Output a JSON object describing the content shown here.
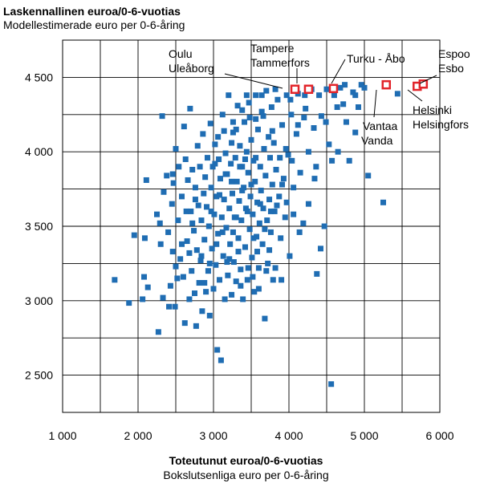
{
  "chart_data": {
    "type": "scatter",
    "title": "Laskennallinen euroa/0-6-vuotias",
    "subtitle": "Modellestimerade euro per 0-6-åring",
    "xlabel": "Toteutunut euroa/0-6-vuotias",
    "xlabel_sub": "Bokslutsenliga euro per 0-6-åring",
    "xlim": [
      1000,
      6000
    ],
    "ylim": [
      2250,
      4750
    ],
    "x_ticks": [
      "1 000",
      "2 000",
      "3 000",
      "4 000",
      "5 000",
      "6 000"
    ],
    "y_ticks": [
      "2 500",
      "3 000",
      "3 500",
      "4 000",
      "4 500"
    ],
    "x_tick_values": [
      1000,
      2000,
      3000,
      4000,
      5000,
      6000
    ],
    "y_tick_values": [
      2500,
      3000,
      3500,
      4000,
      4500
    ],
    "grid": true,
    "colors": {
      "points": "#1f6db3",
      "highlight": "#e2242a",
      "grid": "#000000"
    },
    "highlighted": [
      {
        "x": 4080,
        "y": 4420,
        "label": [
          "Oulu",
          "Uleåborg"
        ]
      },
      {
        "x": 4260,
        "y": 4420,
        "label": [
          "Tampere",
          "Tammerfors"
        ]
      },
      {
        "x": 4590,
        "y": 4425,
        "label": [
          "Turku - Åbo"
        ]
      },
      {
        "x": 5290,
        "y": 4450,
        "label": [
          "Vantaa",
          "Vanda"
        ]
      },
      {
        "x": 5700,
        "y": 4440,
        "label": [
          "Helsinki",
          "Helsingfors"
        ]
      },
      {
        "x": 5780,
        "y": 4455,
        "label": [
          "Espoo",
          "Esbo"
        ]
      }
    ],
    "series": [
      {
        "points": [
          [
            1690,
            3140
          ],
          [
            1880,
            2985
          ],
          [
            1950,
            3440
          ],
          [
            2060,
            3010
          ],
          [
            2080,
            3160
          ],
          [
            2090,
            3420
          ],
          [
            2110,
            3810
          ],
          [
            2130,
            3090
          ],
          [
            2250,
            3580
          ],
          [
            2270,
            2790
          ],
          [
            2290,
            3520
          ],
          [
            2300,
            3380
          ],
          [
            2320,
            4240
          ],
          [
            2330,
            3020
          ],
          [
            2340,
            3730
          ],
          [
            2380,
            3840
          ],
          [
            2400,
            3460
          ],
          [
            2410,
            2960
          ],
          [
            2430,
            3100
          ],
          [
            2450,
            3650
          ],
          [
            2460,
            3330
          ],
          [
            2470,
            3790
          ],
          [
            2490,
            2960
          ],
          [
            2500,
            4020
          ],
          [
            2520,
            3150
          ],
          [
            2530,
            3540
          ],
          [
            2540,
            3900
          ],
          [
            2560,
            3280
          ],
          [
            2580,
            3700
          ],
          [
            2600,
            3160
          ],
          [
            2610,
            4170
          ],
          [
            2620,
            2850
          ],
          [
            2630,
            3950
          ],
          [
            2650,
            3400
          ],
          [
            2660,
            3810
          ],
          [
            2680,
            3010
          ],
          [
            2690,
            4290
          ],
          [
            2700,
            3600
          ],
          [
            2710,
            3200
          ],
          [
            2720,
            3880
          ],
          [
            2740,
            3470
          ],
          [
            2750,
            3050
          ],
          [
            2760,
            3760
          ],
          [
            2770,
            2830
          ],
          [
            2780,
            3340
          ],
          [
            2790,
            4040
          ],
          [
            2800,
            3640
          ],
          [
            2810,
            3120
          ],
          [
            2820,
            3900
          ],
          [
            2830,
            3270
          ],
          [
            2840,
            3540
          ],
          [
            2850,
            2930
          ],
          [
            2860,
            4120
          ],
          [
            2870,
            3720
          ],
          [
            2880,
            3410
          ],
          [
            2890,
            3830
          ],
          [
            2900,
            3060
          ],
          [
            2910,
            3630
          ],
          [
            2920,
            3960
          ],
          [
            2930,
            3200
          ],
          [
            2940,
            3500
          ],
          [
            2950,
            2900
          ],
          [
            2960,
            4190
          ],
          [
            2970,
            3760
          ],
          [
            2980,
            3350
          ],
          [
            2990,
            3900
          ],
          [
            3000,
            3080
          ],
          [
            3010,
            3580
          ],
          [
            3020,
            4050
          ],
          [
            3030,
            3240
          ],
          [
            3040,
            3700
          ],
          [
            3050,
            2670
          ],
          [
            3060,
            3450
          ],
          [
            3070,
            3950
          ],
          [
            3080,
            3140
          ],
          [
            3090,
            3820
          ],
          [
            3100,
            2600
          ],
          [
            3110,
            3560
          ],
          [
            3120,
            4250
          ],
          [
            3130,
            3300
          ],
          [
            3140,
            3680
          ],
          [
            3150,
            3010
          ],
          [
            3160,
            3990
          ],
          [
            3170,
            3490
          ],
          [
            3180,
            3850
          ],
          [
            3190,
            3170
          ],
          [
            3200,
            4380
          ],
          [
            3210,
            3620
          ],
          [
            3220,
            3380
          ],
          [
            3230,
            3920
          ],
          [
            3240,
            3040
          ],
          [
            3250,
            3720
          ],
          [
            3260,
            4130
          ],
          [
            3270,
            3260
          ],
          [
            3280,
            3560
          ],
          [
            3290,
            3960
          ],
          [
            3300,
            3130
          ],
          [
            3310,
            3800
          ],
          [
            3320,
            4310
          ],
          [
            3330,
            3420
          ],
          [
            3340,
            3670
          ],
          [
            3350,
            4040
          ],
          [
            3360,
            3210
          ],
          [
            3370,
            3540
          ],
          [
            3380,
            3900
          ],
          [
            3390,
            3010
          ],
          [
            3400,
            3760
          ],
          [
            3410,
            4200
          ],
          [
            3420,
            3360
          ],
          [
            3430,
            3620
          ],
          [
            3440,
            4000
          ],
          [
            3450,
            3140
          ],
          [
            3460,
            3860
          ],
          [
            3470,
            4330
          ],
          [
            3480,
            3480
          ],
          [
            3490,
            3700
          ],
          [
            3500,
            4080
          ],
          [
            3510,
            3290
          ],
          [
            3520,
            3580
          ],
          [
            3530,
            3940
          ],
          [
            3540,
            3060
          ],
          [
            3550,
            3800
          ],
          [
            3560,
            4380
          ],
          [
            3570,
            3430
          ],
          [
            3580,
            3660
          ],
          [
            3590,
            4150
          ],
          [
            3600,
            3220
          ],
          [
            3610,
            3520
          ],
          [
            3620,
            3900
          ],
          [
            3630,
            3740
          ],
          [
            3640,
            4270
          ],
          [
            3650,
            3380
          ],
          [
            3660,
            3620
          ],
          [
            3670,
            4020
          ],
          [
            3680,
            2880
          ],
          [
            3690,
            3840
          ],
          [
            3700,
            4410
          ],
          [
            3710,
            3540
          ],
          [
            3720,
            3250
          ],
          [
            3730,
            4100
          ],
          [
            3740,
            3680
          ],
          [
            3750,
            3960
          ],
          [
            3760,
            3460
          ],
          [
            3770,
            4300
          ],
          [
            3780,
            3780
          ],
          [
            3790,
            3140
          ],
          [
            3800,
            4060
          ],
          [
            3810,
            3600
          ],
          [
            3830,
            3880
          ],
          [
            3850,
            4350
          ],
          [
            3870,
            3700
          ],
          [
            3890,
            3420
          ],
          [
            3910,
            4180
          ],
          [
            3930,
            3820
          ],
          [
            3950,
            3560
          ],
          [
            3970,
            4380
          ],
          [
            3990,
            3980
          ],
          [
            4010,
            3300
          ],
          [
            4030,
            4250
          ],
          [
            4060,
            3760
          ],
          [
            4100,
            4120
          ],
          [
            4120,
            4390
          ],
          [
            4150,
            3860
          ],
          [
            4190,
            3520
          ],
          [
            4220,
            4290
          ],
          [
            4260,
            4000
          ],
          [
            4300,
            4420
          ],
          [
            4330,
            4160
          ],
          [
            4360,
            3900
          ],
          [
            4400,
            4380
          ],
          [
            4430,
            4240
          ],
          [
            4470,
            3500
          ],
          [
            4500,
            4420
          ],
          [
            4530,
            4050
          ],
          [
            4560,
            2440
          ],
          [
            4570,
            3940
          ],
          [
            4600,
            4380
          ],
          [
            4640,
            4300
          ],
          [
            4680,
            4430
          ],
          [
            4720,
            4320
          ],
          [
            4760,
            4200
          ],
          [
            4800,
            3940
          ],
          [
            4850,
            4400
          ],
          [
            4880,
            4130
          ],
          [
            4920,
            4300
          ],
          [
            4960,
            4450
          ],
          [
            5000,
            4430
          ],
          [
            5050,
            3840
          ],
          [
            5250,
            3660
          ],
          [
            5440,
            4390
          ],
          [
            4420,
            3350
          ],
          [
            4370,
            3180
          ],
          [
            3350,
            3900
          ],
          [
            3420,
            3950
          ],
          [
            3500,
            3780
          ],
          [
            3560,
            3960
          ],
          [
            3620,
            3650
          ],
          [
            3380,
            3740
          ],
          [
            3240,
            3800
          ],
          [
            3160,
            3850
          ],
          [
            3080,
            3710
          ],
          [
            3020,
            3920
          ],
          [
            2970,
            3600
          ],
          [
            3120,
            3460
          ],
          [
            3210,
            3280
          ],
          [
            3300,
            3560
          ],
          [
            3450,
            3600
          ],
          [
            3530,
            3420
          ],
          [
            3680,
            3480
          ],
          [
            3740,
            3340
          ],
          [
            3820,
            3220
          ],
          [
            3900,
            3140
          ],
          [
            3460,
            3220
          ],
          [
            3360,
            3100
          ],
          [
            3260,
            3460
          ],
          [
            3180,
            3260
          ],
          [
            2950,
            3250
          ],
          [
            2880,
            3120
          ],
          [
            3040,
            3380
          ],
          [
            3330,
            3330
          ],
          [
            3580,
            3330
          ],
          [
            3700,
            3200
          ],
          [
            3600,
            3080
          ],
          [
            3520,
            3160
          ],
          [
            3760,
            3600
          ],
          [
            3840,
            3640
          ],
          [
            3880,
            3960
          ],
          [
            3960,
            4020
          ],
          [
            4040,
            3940
          ],
          [
            4120,
            4180
          ],
          [
            4200,
            4230
          ],
          [
            3780,
            4140
          ],
          [
            3660,
            4240
          ],
          [
            3560,
            4220
          ],
          [
            3480,
            4230
          ],
          [
            3380,
            4280
          ],
          [
            3300,
            4150
          ],
          [
            3240,
            4060
          ],
          [
            3140,
            4140
          ],
          [
            3060,
            4100
          ],
          [
            2720,
            3520
          ],
          [
            2640,
            3600
          ],
          [
            2580,
            3380
          ],
          [
            2500,
            3230
          ],
          [
            2460,
            3850
          ],
          [
            2680,
            3320
          ],
          [
            2760,
            3680
          ],
          [
            2840,
            3300
          ],
          [
            3910,
            3780
          ],
          [
            3970,
            3660
          ],
          [
            4060,
            3580
          ],
          [
            4140,
            3460
          ],
          [
            4260,
            3650
          ],
          [
            4340,
            3820
          ],
          [
            4490,
            4200
          ],
          [
            4650,
            4000
          ],
          [
            4740,
            4450
          ],
          [
            4880,
            4380
          ],
          [
            4210,
            4380
          ],
          [
            4020,
            4350
          ],
          [
            3820,
            4420
          ],
          [
            3640,
            4380
          ],
          [
            3440,
            4380
          ],
          [
            3260,
            4200
          ]
        ]
      }
    ]
  }
}
